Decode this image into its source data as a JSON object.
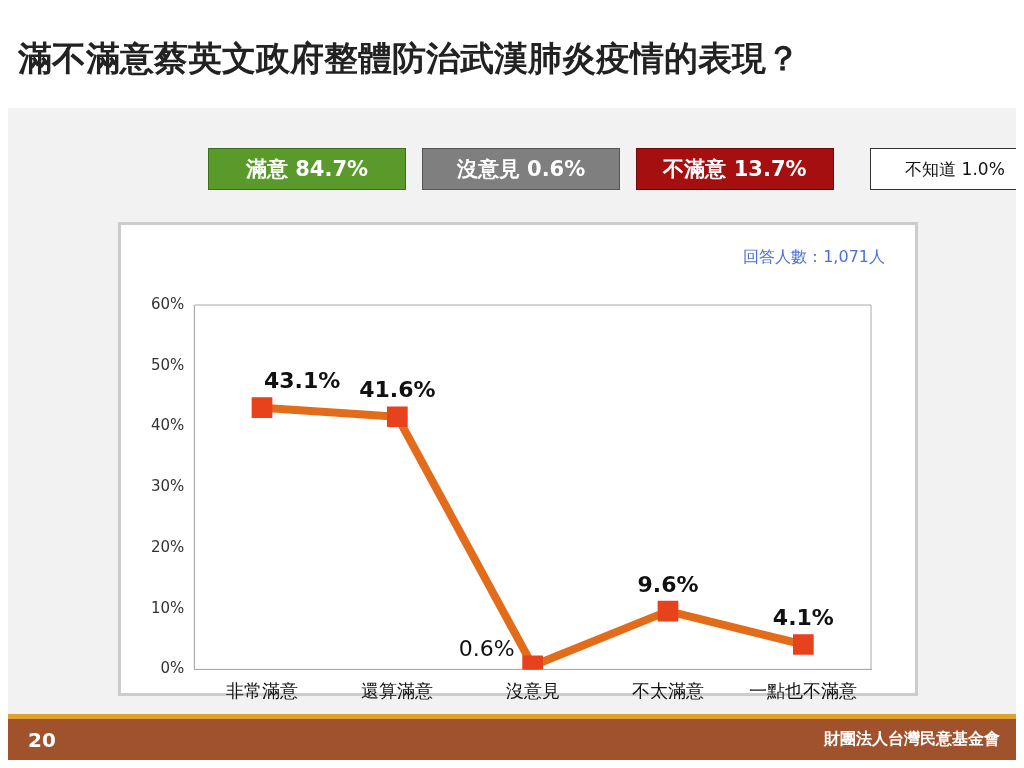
{
  "chart_data": {
    "type": "line",
    "title": "滿不滿意蔡英文政府整體防治武漢肺炎疫情的表現？",
    "categories": [
      "非常滿意",
      "還算滿意",
      "沒意見",
      "不太滿意",
      "一點也不滿意"
    ],
    "series": [
      {
        "color": "#e36c1b",
        "values": [
          43.1,
          41.6,
          0.6,
          9.6,
          4.1
        ],
        "value_labels": [
          "43.1%",
          "41.6%",
          "0.6%",
          "9.6%",
          "4.1%"
        ]
      }
    ],
    "ylim": [
      0,
      60
    ],
    "yticks": [
      {
        "value": 0,
        "label": "0%"
      },
      {
        "value": 10,
        "label": "10%"
      },
      {
        "value": 20,
        "label": "20%"
      },
      {
        "value": 30,
        "label": "30%"
      },
      {
        "value": 40,
        "label": "40%"
      },
      {
        "value": 50,
        "label": "50%"
      },
      {
        "value": 60,
        "label": "60%"
      }
    ],
    "grid": false,
    "legend": false,
    "marker": "square",
    "line_style": "solid",
    "annotations": [
      "滿意 84.7%",
      "沒意見 0.6%",
      "不滿意 13.7%",
      "不知道 1.0%",
      "回答人數：1,071人",
      "20",
      "財團法人台灣民意基金會"
    ]
  }
}
